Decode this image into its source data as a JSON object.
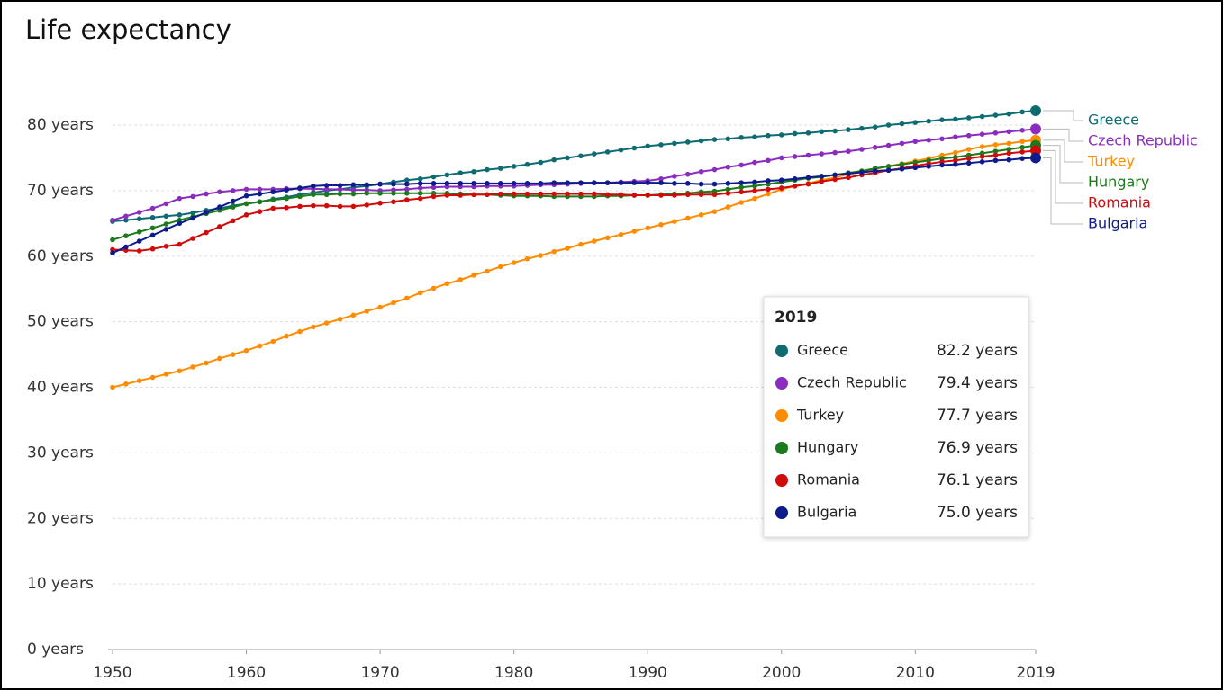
{
  "chart_data": {
    "type": "line",
    "title": "Life expectancy",
    "x": [
      1950,
      1951,
      1952,
      1953,
      1954,
      1955,
      1956,
      1957,
      1958,
      1959,
      1960,
      1961,
      1962,
      1963,
      1964,
      1965,
      1966,
      1967,
      1968,
      1969,
      1970,
      1971,
      1972,
      1973,
      1974,
      1975,
      1976,
      1977,
      1978,
      1979,
      1980,
      1981,
      1982,
      1983,
      1984,
      1985,
      1986,
      1987,
      1988,
      1989,
      1990,
      1991,
      1992,
      1993,
      1994,
      1995,
      1996,
      1997,
      1998,
      1999,
      2000,
      2001,
      2002,
      2003,
      2004,
      2005,
      2006,
      2007,
      2008,
      2009,
      2010,
      2011,
      2012,
      2013,
      2014,
      2015,
      2016,
      2017,
      2018,
      2019
    ],
    "xlim": [
      1950,
      2019
    ],
    "xticks": [
      1950,
      1960,
      1970,
      1980,
      1990,
      2000,
      2010,
      2019
    ],
    "ylim": [
      0,
      80
    ],
    "yticks": [
      {
        "value": 0,
        "label": "0 years"
      },
      {
        "value": 10,
        "label": "10 years"
      },
      {
        "value": 20,
        "label": "20 years"
      },
      {
        "value": 30,
        "label": "30 years"
      },
      {
        "value": 40,
        "label": "40 years"
      },
      {
        "value": 50,
        "label": "50 years"
      },
      {
        "value": 60,
        "label": "60 years"
      },
      {
        "value": 70,
        "label": "70 years"
      },
      {
        "value": 80,
        "label": "80 years"
      }
    ],
    "grid": true,
    "series": [
      {
        "name": "Greece",
        "color": "#0e6b72",
        "values": [
          65.3,
          65.5,
          65.7,
          65.9,
          66.1,
          66.3,
          66.6,
          67.0,
          67.3,
          67.7,
          68.0,
          68.3,
          68.7,
          69.0,
          69.4,
          69.7,
          70.0,
          70.2,
          70.5,
          70.7,
          71.0,
          71.3,
          71.6,
          71.8,
          72.1,
          72.4,
          72.7,
          72.9,
          73.2,
          73.4,
          73.7,
          74.0,
          74.3,
          74.7,
          75.0,
          75.3,
          75.6,
          75.9,
          76.2,
          76.5,
          76.8,
          77.0,
          77.2,
          77.4,
          77.6,
          77.8,
          77.9,
          78.1,
          78.2,
          78.4,
          78.5,
          78.7,
          78.8,
          79.0,
          79.1,
          79.3,
          79.5,
          79.7,
          80.0,
          80.2,
          80.4,
          80.6,
          80.8,
          80.9,
          81.1,
          81.3,
          81.5,
          81.7,
          82.0,
          82.2
        ],
        "value_labels": [
          null,
          null,
          null,
          null,
          null,
          null,
          null,
          null,
          null,
          null,
          null,
          null,
          null,
          null,
          null,
          null,
          null,
          null,
          null,
          null,
          null,
          null,
          null,
          null,
          null,
          null,
          null,
          null,
          null,
          null,
          null,
          null,
          null,
          null,
          null,
          null,
          null,
          null,
          null,
          null,
          null,
          null,
          null,
          null,
          null,
          null,
          null,
          null,
          null,
          null,
          null,
          null,
          null,
          null,
          null,
          null,
          null,
          null,
          null,
          null,
          null,
          null,
          null,
          null,
          null,
          null,
          null,
          null,
          null,
          "82.2 years"
        ]
      },
      {
        "name": "Czech Republic",
        "color": "#8a2dbf",
        "values": [
          65.5,
          66.1,
          66.7,
          67.3,
          68.0,
          68.8,
          69.1,
          69.5,
          69.8,
          70.0,
          70.2,
          70.2,
          70.2,
          70.3,
          70.3,
          70.3,
          70.2,
          70.2,
          70.1,
          70.1,
          70.0,
          70.1,
          70.2,
          70.4,
          70.5,
          70.6,
          70.6,
          70.6,
          70.7,
          70.7,
          70.7,
          70.8,
          70.9,
          70.9,
          71.0,
          71.1,
          71.2,
          71.2,
          71.3,
          71.4,
          71.5,
          71.8,
          72.2,
          72.5,
          72.9,
          73.2,
          73.6,
          73.9,
          74.3,
          74.6,
          75.0,
          75.2,
          75.4,
          75.6,
          75.8,
          76.0,
          76.3,
          76.6,
          76.9,
          77.2,
          77.5,
          77.7,
          77.9,
          78.2,
          78.4,
          78.6,
          78.8,
          79.0,
          79.2,
          79.4
        ],
        "value_labels": [
          null,
          null,
          null,
          null,
          null,
          null,
          null,
          null,
          null,
          null,
          null,
          null,
          null,
          null,
          null,
          null,
          null,
          null,
          null,
          null,
          null,
          null,
          null,
          null,
          null,
          null,
          null,
          null,
          null,
          null,
          null,
          null,
          null,
          null,
          null,
          null,
          null,
          null,
          null,
          null,
          null,
          null,
          null,
          null,
          null,
          null,
          null,
          null,
          null,
          null,
          null,
          null,
          null,
          null,
          null,
          null,
          null,
          null,
          null,
          null,
          null,
          null,
          null,
          null,
          null,
          null,
          null,
          null,
          null,
          "79.4 years"
        ]
      },
      {
        "name": "Turkey",
        "color": "#ff8c00",
        "values": [
          40.0,
          40.5,
          41.0,
          41.5,
          42.0,
          42.5,
          43.1,
          43.7,
          44.4,
          45.0,
          45.6,
          46.3,
          47.0,
          47.8,
          48.5,
          49.2,
          49.8,
          50.4,
          51.0,
          51.6,
          52.2,
          52.9,
          53.6,
          54.4,
          55.1,
          55.8,
          56.4,
          57.1,
          57.7,
          58.4,
          59.0,
          59.6,
          60.1,
          60.7,
          61.2,
          61.8,
          62.3,
          62.8,
          63.3,
          63.8,
          64.3,
          64.8,
          65.3,
          65.8,
          66.3,
          66.8,
          67.5,
          68.2,
          68.8,
          69.5,
          70.2,
          70.7,
          71.1,
          71.6,
          72.0,
          72.5,
          72.9,
          73.3,
          73.7,
          74.1,
          74.5,
          74.9,
          75.4,
          75.8,
          76.3,
          76.7,
          77.0,
          77.2,
          77.5,
          77.7
        ],
        "value_labels": [
          null,
          null,
          null,
          null,
          null,
          null,
          null,
          null,
          null,
          null,
          null,
          null,
          null,
          null,
          null,
          null,
          null,
          null,
          null,
          null,
          null,
          null,
          null,
          null,
          null,
          null,
          null,
          null,
          null,
          null,
          null,
          null,
          null,
          null,
          null,
          null,
          null,
          null,
          null,
          null,
          null,
          null,
          null,
          null,
          null,
          null,
          null,
          null,
          null,
          null,
          null,
          null,
          null,
          null,
          null,
          null,
          null,
          null,
          null,
          null,
          null,
          null,
          null,
          null,
          null,
          null,
          null,
          null,
          null,
          "77.7 years"
        ]
      },
      {
        "name": "Hungary",
        "color": "#1b7a1b",
        "values": [
          62.5,
          63.1,
          63.7,
          64.3,
          64.9,
          65.5,
          66.0,
          66.5,
          67.0,
          67.5,
          68.0,
          68.3,
          68.6,
          68.8,
          69.1,
          69.4,
          69.4,
          69.5,
          69.5,
          69.6,
          69.6,
          69.6,
          69.6,
          69.6,
          69.6,
          69.6,
          69.5,
          69.4,
          69.4,
          69.3,
          69.2,
          69.2,
          69.2,
          69.1,
          69.1,
          69.1,
          69.1,
          69.2,
          69.2,
          69.3,
          69.3,
          69.4,
          69.5,
          69.6,
          69.8,
          69.9,
          70.2,
          70.5,
          70.7,
          71.0,
          71.3,
          71.6,
          71.9,
          72.1,
          72.4,
          72.7,
          73.0,
          73.4,
          73.7,
          74.0,
          74.3,
          74.6,
          74.9,
          75.1,
          75.4,
          75.7,
          76.0,
          76.3,
          76.6,
          76.9
        ],
        "value_labels": [
          null,
          null,
          null,
          null,
          null,
          null,
          null,
          null,
          null,
          null,
          null,
          null,
          null,
          null,
          null,
          null,
          null,
          null,
          null,
          null,
          null,
          null,
          null,
          null,
          null,
          null,
          null,
          null,
          null,
          null,
          null,
          null,
          null,
          null,
          null,
          null,
          null,
          null,
          null,
          null,
          null,
          null,
          null,
          null,
          null,
          null,
          null,
          null,
          null,
          null,
          null,
          null,
          null,
          null,
          null,
          null,
          null,
          null,
          null,
          null,
          null,
          null,
          null,
          null,
          null,
          null,
          null,
          null,
          null,
          "76.9 years"
        ]
      },
      {
        "name": "Romania",
        "color": "#d10a0a",
        "values": [
          61.0,
          60.9,
          60.8,
          61.1,
          61.5,
          61.8,
          62.7,
          63.6,
          64.5,
          65.4,
          66.3,
          66.8,
          67.3,
          67.4,
          67.6,
          67.7,
          67.7,
          67.6,
          67.6,
          67.8,
          68.1,
          68.3,
          68.6,
          68.8,
          69.1,
          69.3,
          69.3,
          69.4,
          69.4,
          69.5,
          69.5,
          69.5,
          69.5,
          69.5,
          69.5,
          69.5,
          69.5,
          69.4,
          69.4,
          69.3,
          69.3,
          69.3,
          69.3,
          69.4,
          69.4,
          69.4,
          69.6,
          69.8,
          70.0,
          70.2,
          70.4,
          70.7,
          71.0,
          71.4,
          71.7,
          72.0,
          72.4,
          72.7,
          73.1,
          73.4,
          73.8,
          74.1,
          74.4,
          74.6,
          74.9,
          75.2,
          75.4,
          75.7,
          75.9,
          76.1
        ],
        "value_labels": [
          null,
          null,
          null,
          null,
          null,
          null,
          null,
          null,
          null,
          null,
          null,
          null,
          null,
          null,
          null,
          null,
          null,
          null,
          null,
          null,
          null,
          null,
          null,
          null,
          null,
          null,
          null,
          null,
          null,
          null,
          null,
          null,
          null,
          null,
          null,
          null,
          null,
          null,
          null,
          null,
          null,
          null,
          null,
          null,
          null,
          null,
          null,
          null,
          null,
          null,
          null,
          null,
          null,
          null,
          null,
          null,
          null,
          null,
          null,
          null,
          null,
          null,
          null,
          null,
          null,
          null,
          null,
          null,
          null,
          "76.1 years"
        ]
      },
      {
        "name": "Bulgaria",
        "color": "#0d1b8c",
        "values": [
          60.5,
          61.4,
          62.3,
          63.2,
          64.1,
          65.0,
          65.8,
          66.7,
          67.5,
          68.4,
          69.2,
          69.5,
          69.8,
          70.1,
          70.4,
          70.7,
          70.8,
          70.8,
          70.9,
          70.9,
          71.0,
          71.0,
          71.0,
          71.1,
          71.1,
          71.1,
          71.1,
          71.1,
          71.1,
          71.1,
          71.1,
          71.1,
          71.1,
          71.2,
          71.2,
          71.2,
          71.2,
          71.2,
          71.2,
          71.2,
          71.2,
          71.2,
          71.1,
          71.1,
          71.0,
          71.0,
          71.1,
          71.2,
          71.3,
          71.5,
          71.6,
          71.8,
          72.0,
          72.2,
          72.4,
          72.6,
          72.8,
          73.0,
          73.1,
          73.3,
          73.5,
          73.7,
          73.9,
          74.0,
          74.2,
          74.4,
          74.6,
          74.7,
          74.9,
          75.0
        ],
        "value_labels": [
          null,
          null,
          null,
          null,
          null,
          null,
          null,
          null,
          null,
          null,
          null,
          null,
          null,
          null,
          null,
          null,
          null,
          null,
          null,
          null,
          null,
          null,
          null,
          null,
          null,
          null,
          null,
          null,
          null,
          null,
          null,
          null,
          null,
          null,
          null,
          null,
          null,
          null,
          null,
          null,
          null,
          null,
          null,
          null,
          null,
          null,
          null,
          null,
          null,
          null,
          null,
          null,
          null,
          null,
          null,
          null,
          null,
          null,
          null,
          null,
          null,
          null,
          null,
          null,
          null,
          null,
          null,
          null,
          null,
          "75.0 years"
        ]
      }
    ]
  }
}
